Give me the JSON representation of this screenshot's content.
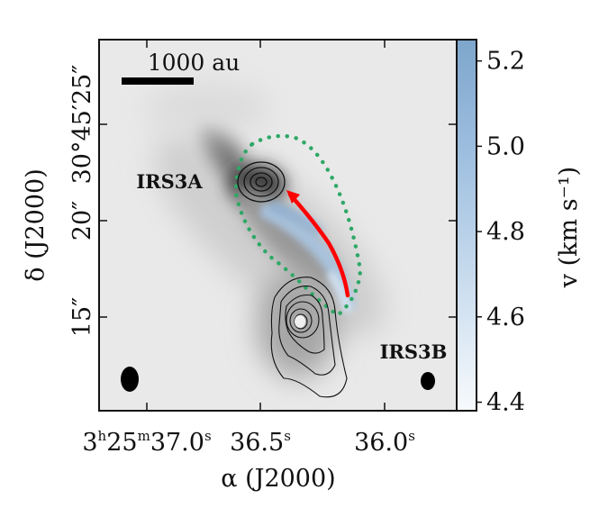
{
  "chart_data": {
    "type": "heatmap",
    "title": "",
    "xlabel": "α (J2000)",
    "ylabel": "δ (J2000)",
    "colorbar_label": "v (km s⁻¹)",
    "colorbar_range": [
      4.38,
      5.25
    ],
    "colorbar_ticks": [
      4.4,
      4.6,
      4.8,
      5.0,
      5.2
    ],
    "colorbar_tick_labels": [
      "4.4",
      "4.6",
      "4.8",
      "5.0",
      "5.2"
    ],
    "colormap": [
      "#f7fafd",
      "#c9dcee",
      "#9dbedf",
      "#7ea6cc"
    ],
    "x_tick_labels": [
      "3h25m37.0s",
      "36.5s",
      "36.0s"
    ],
    "y_tick_labels": [
      "30°45′25″",
      "20″",
      "15″"
    ],
    "scalebar_label": "1000 au",
    "annotations": [
      {
        "text": "IRS3A",
        "role": "source label"
      },
      {
        "text": "IRS3B",
        "role": "source label"
      }
    ],
    "streamer": {
      "color": "#ff0000",
      "description_points_sky": [
        [
          36.36,
          21.5
        ],
        [
          36.31,
          19.8
        ],
        [
          36.24,
          17.8
        ],
        [
          36.19,
          16.2
        ]
      ]
    },
    "region_outline": {
      "style": "dotted",
      "color": "#2ea866"
    },
    "contour_sources": [
      "IRS3A",
      "IRS3B"
    ],
    "background": "grayscale continuum",
    "legend": "none"
  }
}
